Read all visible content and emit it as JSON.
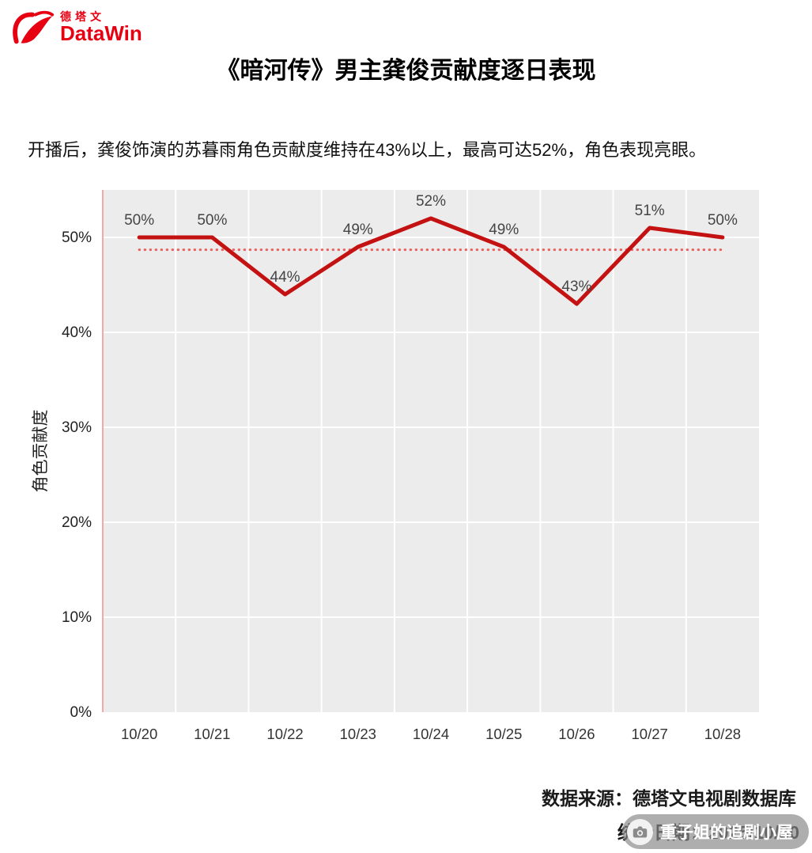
{
  "logo": {
    "cn": "德塔文",
    "en": "DataWin"
  },
  "header": {
    "title": "《暗河传》男主龚俊贡献度逐日表现"
  },
  "subtitle": "开播后，龚俊饰演的苏暮雨角色贡献度维持在43%以上，最高可达52%，角色表现亮眼。",
  "footer": {
    "source": "数据来源：德塔文电视剧数据库",
    "date": "统计日期：2025/10/30",
    "watermark": "重子姐的追剧小屋"
  },
  "chart_data": {
    "type": "line",
    "categories": [
      "10/20",
      "10/21",
      "10/22",
      "10/23",
      "10/24",
      "10/25",
      "10/26",
      "10/27",
      "10/28"
    ],
    "values": [
      50,
      50,
      44,
      49,
      52,
      49,
      43,
      51,
      50
    ],
    "labels": [
      "50%",
      "50%",
      "44%",
      "49%",
      "52%",
      "49%",
      "43%",
      "51%",
      "50%"
    ],
    "title": "《暗河传》男主龚俊贡献度逐日表现",
    "xlabel": "",
    "ylabel": "角色贡献度",
    "yticks": [
      0,
      10,
      20,
      30,
      40,
      50
    ],
    "ylim": [
      0,
      55
    ],
    "average_line": 48.7,
    "line_color": "#c41111",
    "average_color": "#e86060",
    "plot_bg": "#ececec",
    "grid": true,
    "legend_position": "none"
  }
}
